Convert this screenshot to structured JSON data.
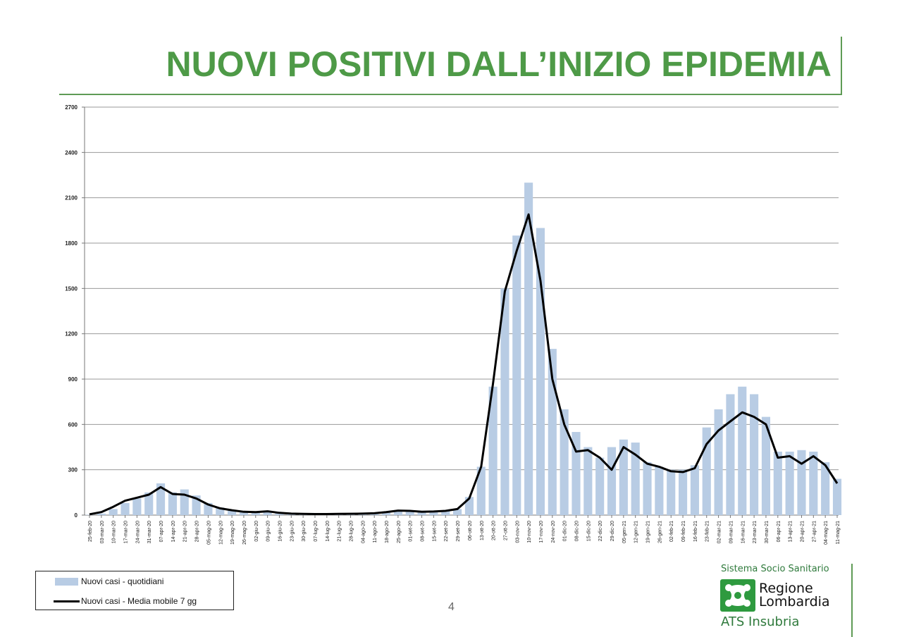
{
  "title": "NUOVI POSITIVI DALL’INIZIO EPIDEMIA",
  "page_number": "4",
  "logo": {
    "top_text": "Sistema Socio Sanitario",
    "name_line1": "Regione",
    "name_line2": "Lombardia",
    "bottom_text": "ATS Insubria",
    "mark_icon": "cross-logo-icon"
  },
  "chart_data": {
    "type": "bar",
    "ylim": [
      0,
      2700
    ],
    "yticks": [
      0,
      300,
      600,
      900,
      1200,
      1500,
      1800,
      2100,
      2400,
      2700
    ],
    "categories": [
      "25-feb-20",
      "03-mar-20",
      "10-mar-20",
      "17-mar-20",
      "24-mar-20",
      "31-mar-20",
      "07-apr-20",
      "14-apr-20",
      "21-apr-20",
      "28-apr-20",
      "05-mag-20",
      "12-mag-20",
      "19-mag-20",
      "26-mag-20",
      "02-giu-20",
      "09-giu-20",
      "16-giu-20",
      "23-giu-20",
      "30-giu-20",
      "07-lug-20",
      "14-lug-20",
      "21-lug-20",
      "28-lug-20",
      "04-ago-20",
      "11-ago-20",
      "18-ago-20",
      "25-ago-20",
      "01-set-20",
      "08-set-20",
      "15-set-20",
      "22-set-20",
      "29-set-20",
      "06-ott-20",
      "13-ott-20",
      "20-ott-20",
      "27-ott-20",
      "03-nov-20",
      "10-nov-20",
      "17-nov-20",
      "24-nov-20",
      "01-dic-20",
      "08-dic-20",
      "15-dic-20",
      "22-dic-20",
      "29-dic-20",
      "05-gen-21",
      "12-gen-21",
      "19-gen-21",
      "26-gen-21",
      "02-feb-21",
      "09-feb-21",
      "16-feb-21",
      "23-feb-21",
      "02-mar-21",
      "09-mar-21",
      "16-mar-21",
      "23-mar-21",
      "30-mar-21",
      "06-apr-21",
      "13-apr-21",
      "20-apr-21",
      "27-apr-21",
      "04-mag-21",
      "11-mag-21"
    ],
    "series": [
      {
        "name": "Nuovi casi - quotidiani",
        "kind": "bar",
        "color": "#b8cce4",
        "values": [
          2,
          10,
          40,
          80,
          110,
          150,
          210,
          150,
          170,
          130,
          80,
          50,
          35,
          25,
          20,
          20,
          12,
          8,
          8,
          6,
          6,
          8,
          8,
          8,
          12,
          20,
          30,
          25,
          22,
          25,
          30,
          40,
          120,
          320,
          850,
          1500,
          1850,
          2200,
          1900,
          1100,
          700,
          550,
          450,
          380,
          450,
          500,
          480,
          350,
          320,
          300,
          300,
          330,
          580,
          700,
          800,
          850,
          800,
          650,
          420,
          420,
          430,
          420,
          350,
          240
        ]
      },
      {
        "name": "Nuovi casi - Media mobile 7 gg",
        "kind": "line",
        "color": "#000000",
        "values": [
          5,
          20,
          55,
          95,
          115,
          135,
          185,
          140,
          135,
          110,
          70,
          45,
          32,
          22,
          20,
          25,
          15,
          10,
          8,
          7,
          7,
          8,
          9,
          10,
          12,
          20,
          30,
          28,
          22,
          24,
          28,
          40,
          110,
          320,
          870,
          1480,
          1750,
          1990,
          1550,
          900,
          600,
          420,
          430,
          380,
          300,
          450,
          400,
          340,
          320,
          290,
          285,
          310,
          470,
          560,
          620,
          680,
          650,
          600,
          380,
          390,
          340,
          390,
          330,
          210
        ]
      }
    ],
    "xlabel": "",
    "ylabel": "",
    "grid": true,
    "legend": "bottom-left"
  }
}
